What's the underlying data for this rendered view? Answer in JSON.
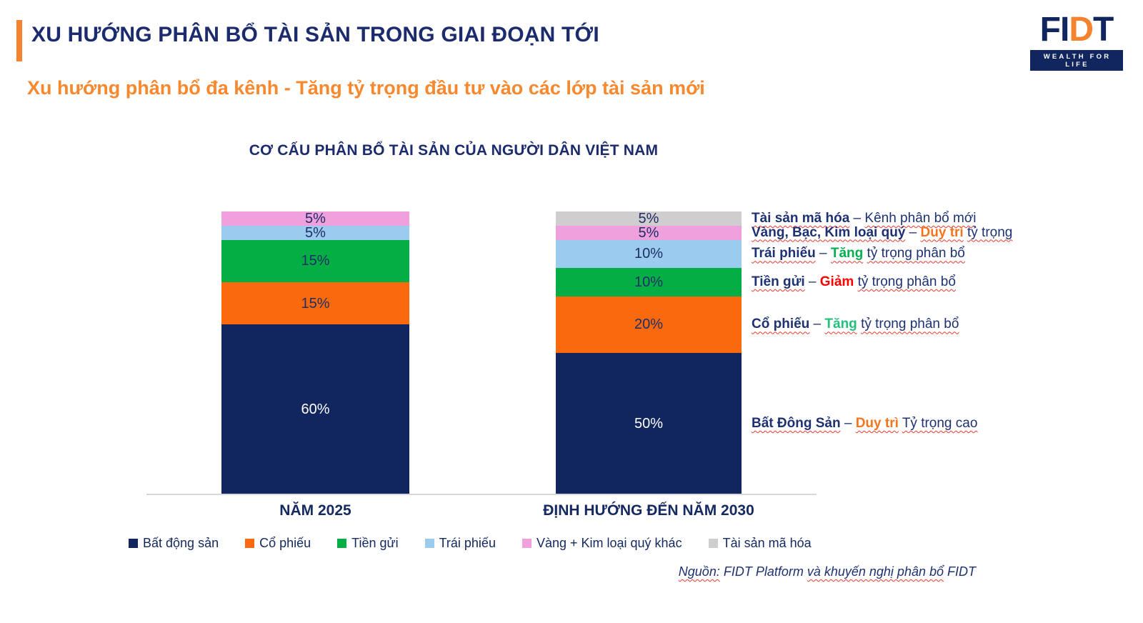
{
  "header": {
    "title": "XU HƯỚNG PHÂN BỔ TÀI SẢN TRONG GIAI ĐOẠN TỚI",
    "subtitle": "Xu hướng phân bổ đa kênh - Tăng tỷ trọng đầu tư vào các lớp tài sản mới"
  },
  "logo": {
    "part_fi": "FI",
    "part_d": "D",
    "part_t": "T",
    "tagline": "WEALTH FOR LIFE"
  },
  "chart_data": {
    "type": "bar",
    "stacked": true,
    "title": "CƠ CẤU PHÂN BỔ TÀI SẢN CỦA NGƯỜI DÂN VIỆT NAM",
    "categories": [
      "NĂM 2025",
      "ĐỊNH HƯỚNG ĐẾN NĂM 2030"
    ],
    "series": [
      {
        "name": "Bất động sản",
        "color": "#11265F",
        "label_color": "#FFFFFF",
        "values": [
          60,
          50
        ]
      },
      {
        "name": "Cổ phiếu",
        "color": "#FB690E",
        "label_color": "#1E2F66",
        "values": [
          15,
          20
        ]
      },
      {
        "name": "Tiền gửi",
        "color": "#03AE45",
        "label_color": "#1E2F66",
        "values": [
          15,
          10
        ]
      },
      {
        "name": "Trái phiếu",
        "color": "#9BCBEF",
        "label_color": "#1E2F66",
        "values": [
          5,
          10
        ]
      },
      {
        "name": "Vàng + Kim loại quý khác",
        "color": "#F0A0DC",
        "label_color": "#1E2F66",
        "values": [
          5,
          5
        ]
      },
      {
        "name": "Tài sản mã hóa",
        "color": "#CFCDCD",
        "label_color": "#1E2F66",
        "values": [
          0,
          5
        ]
      }
    ],
    "value_suffix": "%",
    "ylim": [
      0,
      100
    ],
    "grid": false,
    "legend_position": "bottom"
  },
  "annotations": [
    {
      "series_index": 5,
      "parts": [
        {
          "text": "Tài sản mã hóa",
          "bold": true,
          "color": "#1D3173",
          "squiggle": true
        },
        {
          "text": " – ",
          "bold": false,
          "color": "#1D3173",
          "squiggle": false
        },
        {
          "text": "Kênh phân bổ mới",
          "bold": false,
          "color": "#1D3173",
          "squiggle": true
        }
      ]
    },
    {
      "series_index": 4,
      "parts": [
        {
          "text": "Vàng, Bạc, Kim loại quý",
          "bold": true,
          "color": "#1D3173",
          "squiggle": true
        },
        {
          "text": " – ",
          "bold": false,
          "color": "#1D3173",
          "squiggle": false
        },
        {
          "text": "Duy trì",
          "bold": true,
          "color": "#F4751D",
          "squiggle": true
        },
        {
          "text": " ",
          "bold": false,
          "color": "#1D3173",
          "squiggle": false
        },
        {
          "text": "tỷ trọng",
          "bold": false,
          "color": "#1D3173",
          "squiggle": true
        }
      ]
    },
    {
      "series_index": 3,
      "parts": [
        {
          "text": "Trái phiếu",
          "bold": true,
          "color": "#1D3173",
          "squiggle": true
        },
        {
          "text": " – ",
          "bold": false,
          "color": "#1D3173",
          "squiggle": false
        },
        {
          "text": "Tăng",
          "bold": true,
          "color": "#00B050",
          "squiggle": true
        },
        {
          "text": " ",
          "bold": false,
          "color": "#1D3173",
          "squiggle": false
        },
        {
          "text": "tỷ trọng phân bổ",
          "bold": false,
          "color": "#1D3173",
          "squiggle": true
        }
      ]
    },
    {
      "series_index": 2,
      "parts": [
        {
          "text": "Tiền gửi",
          "bold": true,
          "color": "#1D3173",
          "squiggle": true
        },
        {
          "text": " – ",
          "bold": false,
          "color": "#1D3173",
          "squiggle": false
        },
        {
          "text": "Giảm",
          "bold": true,
          "color": "#FE0000",
          "squiggle": false
        },
        {
          "text": " ",
          "bold": false,
          "color": "#1D3173",
          "squiggle": false
        },
        {
          "text": "tỷ trọng phân bổ",
          "bold": false,
          "color": "#1D3173",
          "squiggle": true
        }
      ]
    },
    {
      "series_index": 1,
      "parts": [
        {
          "text": "Cổ phiếu",
          "bold": true,
          "color": "#1D3173",
          "squiggle": true
        },
        {
          "text": " – ",
          "bold": false,
          "color": "#1D3173",
          "squiggle": false
        },
        {
          "text": "Tăng",
          "bold": true,
          "color": "#22C17D",
          "squiggle": true
        },
        {
          "text": " ",
          "bold": false,
          "color": "#1D3173",
          "squiggle": false
        },
        {
          "text": "tỷ trọng phân bổ",
          "bold": false,
          "color": "#1D3173",
          "squiggle": true
        }
      ]
    },
    {
      "series_index": 0,
      "parts": [
        {
          "text": "Bất Đông Sản",
          "bold": true,
          "color": "#1D3173",
          "squiggle": true
        },
        {
          "text": " – ",
          "bold": false,
          "color": "#1D3173",
          "squiggle": false
        },
        {
          "text": "Duy trì",
          "bold": true,
          "color": "#F4751D",
          "squiggle": true
        },
        {
          "text": " ",
          "bold": false,
          "color": "#1D3173",
          "squiggle": false
        },
        {
          "text": "Tỷ trọng cao",
          "bold": false,
          "color": "#1D3173",
          "squiggle": true
        }
      ]
    }
  ],
  "source": {
    "parts": [
      {
        "text": "Nguồn:",
        "squiggle": true
      },
      {
        "text": " FIDT Platform ",
        "squiggle": false
      },
      {
        "text": "và khuyến nghị phân bổ",
        "squiggle": true
      },
      {
        "text": " FIDT",
        "squiggle": false
      }
    ]
  }
}
